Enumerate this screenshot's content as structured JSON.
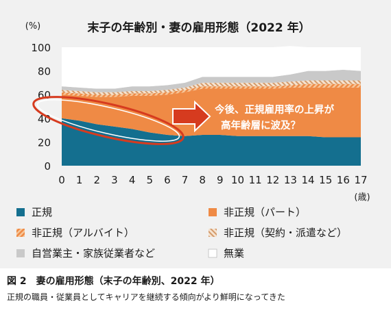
{
  "colors": {
    "seiki": "#146f8f",
    "part": "#ef8a45",
    "arubaito_a": "#ef8a45",
    "arubaito_b": "#f6c79b",
    "keiyaku_a": "#d49a6a",
    "keiyaku_b": "#f5e3d0",
    "jieigyo": "#c9c9c9",
    "mushoku": "#ffffff",
    "accent": "#d63b1f"
  },
  "chart_data": {
    "type": "area",
    "title": "末子の年齢別・妻の雇用形態（2022 年）",
    "ylabel": "(%)",
    "xlabel": "(歳)",
    "ylim": [
      0,
      100
    ],
    "yticks": [
      0,
      20,
      40,
      60,
      80,
      100
    ],
    "x": [
      0,
      1,
      2,
      3,
      4,
      5,
      6,
      7,
      8,
      9,
      10,
      11,
      12,
      13,
      14,
      15,
      16,
      17
    ],
    "stacked": true,
    "series": [
      {
        "name": "正規",
        "color_key": "seiki",
        "values": [
          40,
          38,
          35,
          33,
          31,
          28,
          26,
          25,
          26,
          26,
          25,
          25,
          25,
          25,
          25,
          24,
          24,
          24
        ]
      },
      {
        "name": "非正規（パート）",
        "color_key": "part",
        "values": [
          20,
          21,
          23,
          25,
          28,
          31,
          34,
          37,
          39,
          39,
          40,
          40,
          40,
          41,
          41,
          42,
          42,
          42
        ]
      },
      {
        "name": "非正規（アルバイト）",
        "color_key": "arubaito_a",
        "values": [
          2,
          2,
          2,
          2,
          2,
          2,
          2,
          2,
          2,
          2,
          2,
          2,
          2,
          2,
          3,
          3,
          3,
          3
        ]
      },
      {
        "name": "非正規（契約・派遣など）",
        "color_key": "keiyaku_a",
        "values": [
          2,
          2,
          2,
          2,
          2,
          2,
          2,
          2,
          3,
          3,
          3,
          3,
          3,
          3,
          3,
          3,
          3,
          3
        ]
      },
      {
        "name": "自営業主・家族従業者など",
        "color_key": "jieigyo",
        "values": [
          3,
          3,
          3,
          3,
          4,
          4,
          4,
          4,
          5,
          5,
          5,
          5,
          5,
          6,
          8,
          8,
          9,
          8
        ]
      },
      {
        "name": "無業",
        "color_key": "mushoku",
        "values": [
          33,
          34,
          35,
          35,
          33,
          33,
          32,
          30,
          25,
          25,
          25,
          25,
          25,
          24,
          20,
          20,
          19,
          20
        ]
      }
    ],
    "annotation": {
      "lines": [
        "今後、正規雇用率の上昇が",
        "高年齢層に波及？"
      ]
    }
  },
  "caption": {
    "title": "図 2　妻の雇用形態（末子の年齢別、2022 年）",
    "text": "正規の職員・従業員としてキャリアを継続する傾向がより鮮明になってきた"
  }
}
